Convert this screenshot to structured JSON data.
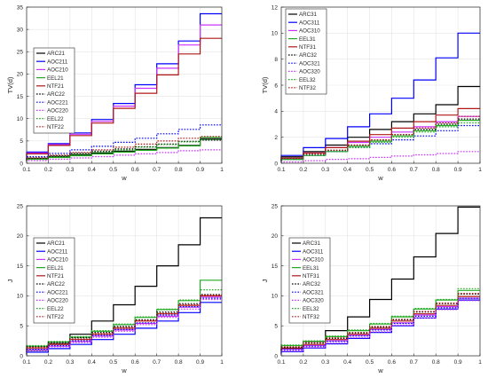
{
  "chart_data": [
    {
      "type": "line",
      "step": true,
      "xlabel": "w",
      "ylabel": "TV(d)",
      "xlim": [
        0.1,
        1
      ],
      "ylim": [
        0,
        35
      ],
      "xticks": [
        "0.1",
        "0.2",
        "0.3",
        "0.4",
        "0.5",
        "0.6",
        "0.7",
        "0.8",
        "0.9",
        "1"
      ],
      "yticks": [
        "0",
        "5",
        "10",
        "15",
        "20",
        "25",
        "30",
        "35"
      ],
      "grid": true,
      "legend": "center-left",
      "x": [
        0.1,
        0.2,
        0.3,
        0.4,
        0.5,
        0.6,
        0.7,
        0.8,
        0.9,
        1.0
      ],
      "series": [
        {
          "name": "ARC21",
          "color": "#000000",
          "style": "solid",
          "values": [
            0.6,
            1.1,
            1.5,
            1.9,
            2.3,
            2.7,
            3.1,
            3.5,
            4.0,
            5.5
          ]
        },
        {
          "name": "AOC211",
          "color": "#0000ff",
          "style": "solid",
          "values": [
            1.0,
            2.5,
            4.4,
            6.8,
            9.8,
            13.4,
            17.6,
            22.3,
            27.4,
            33.5
          ]
        },
        {
          "name": "AOC210",
          "color": "#cc33ff",
          "style": "solid",
          "values": [
            0.9,
            2.3,
            4.2,
            6.5,
            9.4,
            12.8,
            16.8,
            21.3,
            26.5,
            31.0
          ]
        },
        {
          "name": "EEL21",
          "color": "#22aa22",
          "style": "solid",
          "values": [
            0.5,
            0.9,
            1.3,
            1.7,
            2.1,
            2.5,
            2.9,
            3.4,
            3.9,
            5.8
          ]
        },
        {
          "name": "NTF21",
          "color": "#b01818",
          "style": "solid",
          "values": [
            0.9,
            2.1,
            4.0,
            6.2,
            9.0,
            12.3,
            15.7,
            19.8,
            24.5,
            28.0
          ]
        },
        {
          "name": "ARC22",
          "color": "#000000",
          "style": "dotted",
          "values": [
            0.7,
            1.2,
            1.7,
            2.2,
            2.7,
            3.2,
            3.7,
            4.3,
            4.9,
            5.2
          ]
        },
        {
          "name": "AOC221",
          "color": "#0000ff",
          "style": "dotted",
          "values": [
            0.9,
            1.5,
            2.2,
            3.0,
            3.8,
            4.7,
            5.6,
            6.6,
            7.6,
            8.6
          ]
        },
        {
          "name": "AOC220",
          "color": "#cc33ff",
          "style": "dotted",
          "values": [
            0.3,
            0.6,
            0.9,
            1.2,
            1.5,
            1.8,
            2.1,
            2.4,
            2.8,
            3.0
          ]
        },
        {
          "name": "EEL22",
          "color": "#22aa22",
          "style": "dotted",
          "values": [
            0.5,
            1.0,
            1.5,
            2.0,
            2.5,
            3.0,
            3.6,
            4.2,
            4.8,
            5.3
          ]
        },
        {
          "name": "NTF22",
          "color": "#b01818",
          "style": "dotted",
          "values": [
            0.6,
            1.2,
            1.8,
            2.4,
            3.0,
            3.6,
            4.3,
            5.0,
            5.6,
            6.0
          ]
        }
      ]
    },
    {
      "type": "line",
      "step": true,
      "xlabel": "w",
      "ylabel": "TV(d)",
      "xlim": [
        0.1,
        1
      ],
      "ylim": [
        0,
        12
      ],
      "xticks": [
        "0.1",
        "0.2",
        "0.3",
        "0.4",
        "0.5",
        "0.6",
        "0.7",
        "0.8",
        "0.9",
        "1"
      ],
      "yticks": [
        "0",
        "2",
        "4",
        "6",
        "8",
        "10",
        "12"
      ],
      "grid": true,
      "legend": "top-left",
      "x": [
        0.1,
        0.2,
        0.3,
        0.4,
        0.5,
        0.6,
        0.7,
        0.8,
        0.9,
        1.0
      ],
      "series": [
        {
          "name": "ARC31",
          "color": "#000000",
          "style": "solid",
          "values": [
            0.2,
            0.5,
            0.9,
            1.4,
            2.0,
            2.6,
            3.2,
            3.8,
            4.5,
            5.9
          ]
        },
        {
          "name": "AOC311",
          "color": "#0000ff",
          "style": "solid",
          "values": [
            0.3,
            0.6,
            1.2,
            1.9,
            2.8,
            3.8,
            5.0,
            6.4,
            8.1,
            10.0
          ]
        },
        {
          "name": "AOC310",
          "color": "#cc33ff",
          "style": "solid",
          "values": [
            0.2,
            0.4,
            0.8,
            1.2,
            1.6,
            2.0,
            2.4,
            2.8,
            3.2,
            3.6
          ]
        },
        {
          "name": "EEL31",
          "color": "#22aa22",
          "style": "solid",
          "values": [
            0.1,
            0.3,
            0.6,
            0.9,
            1.3,
            1.7,
            2.1,
            2.5,
            2.9,
            3.3
          ]
        },
        {
          "name": "NTF31",
          "color": "#b01818",
          "style": "solid",
          "values": [
            0.2,
            0.4,
            0.8,
            1.2,
            1.7,
            2.2,
            2.7,
            3.2,
            3.7,
            4.2
          ]
        },
        {
          "name": "ARC32",
          "color": "#000000",
          "style": "dotted",
          "values": [
            0.2,
            0.4,
            0.7,
            1.0,
            1.4,
            1.8,
            2.2,
            2.6,
            3.0,
            3.4
          ]
        },
        {
          "name": "AOC321",
          "color": "#0000ff",
          "style": "dotted",
          "values": [
            0.1,
            0.3,
            0.6,
            0.9,
            1.2,
            1.5,
            1.8,
            2.1,
            2.5,
            2.9
          ]
        },
        {
          "name": "AOC320",
          "color": "#cc33ff",
          "style": "dotted",
          "values": [
            0.05,
            0.1,
            0.2,
            0.3,
            0.35,
            0.45,
            0.55,
            0.65,
            0.75,
            0.9
          ]
        },
        {
          "name": "EEL32",
          "color": "#22aa22",
          "style": "dotted",
          "values": [
            0.1,
            0.3,
            0.6,
            0.9,
            1.2,
            1.6,
            2.0,
            2.4,
            2.8,
            3.1
          ]
        },
        {
          "name": "NTF32",
          "color": "#b01818",
          "style": "dotted",
          "values": [
            0.2,
            0.4,
            0.7,
            1.0,
            1.4,
            1.8,
            2.2,
            2.7,
            3.1,
            3.6
          ]
        }
      ]
    },
    {
      "type": "line",
      "step": true,
      "xlabel": "w",
      "ylabel": "J",
      "xlim": [
        0.1,
        1
      ],
      "ylim": [
        0,
        25
      ],
      "xticks": [
        "0.1",
        "0.2",
        "0.3",
        "0.4",
        "0.5",
        "0.6",
        "0.7",
        "0.8",
        "0.9",
        "1"
      ],
      "yticks": [
        "0",
        "5",
        "10",
        "15",
        "20",
        "25"
      ],
      "grid": true,
      "legend": "center-left",
      "x": [
        0.1,
        0.2,
        0.3,
        0.4,
        0.5,
        0.6,
        0.7,
        0.8,
        0.9,
        1.0
      ],
      "series": [
        {
          "name": "ARC21",
          "color": "#000000",
          "style": "solid",
          "values": [
            0.2,
            0.9,
            2.0,
            3.6,
            5.8,
            8.5,
            11.6,
            15.0,
            18.5,
            23.0
          ]
        },
        {
          "name": "AOC211",
          "color": "#0000ff",
          "style": "solid",
          "values": [
            0.2,
            0.6,
            1.2,
            1.9,
            2.7,
            3.6,
            4.6,
            5.8,
            7.2,
            8.9
          ]
        },
        {
          "name": "AOC210",
          "color": "#cc33ff",
          "style": "solid",
          "values": [
            0.5,
            1.0,
            1.6,
            2.4,
            3.3,
            4.3,
            5.4,
            6.6,
            8.1,
            9.8
          ]
        },
        {
          "name": "EEL21",
          "color": "#22aa22",
          "style": "solid",
          "values": [
            1.1,
            1.6,
            2.3,
            3.1,
            4.1,
            5.2,
            6.4,
            7.7,
            9.2,
            12.6
          ]
        },
        {
          "name": "NTF21",
          "color": "#b01818",
          "style": "solid",
          "values": [
            0.8,
            1.3,
            1.9,
            2.7,
            3.6,
            4.6,
            5.8,
            7.0,
            8.4,
            10.0
          ]
        },
        {
          "name": "ARC22",
          "color": "#000000",
          "style": "dotted",
          "values": [
            1.0,
            1.5,
            2.2,
            3.0,
            3.9,
            4.9,
            6.0,
            7.3,
            8.7,
            10.2
          ]
        },
        {
          "name": "AOC221",
          "color": "#0000ff",
          "style": "dotted",
          "values": [
            0.6,
            1.1,
            1.7,
            2.5,
            3.4,
            4.4,
            5.5,
            6.8,
            8.2,
            9.6
          ]
        },
        {
          "name": "AOC220",
          "color": "#cc33ff",
          "style": "dotted",
          "values": [
            0.4,
            0.9,
            1.5,
            2.2,
            3.1,
            4.1,
            5.2,
            6.4,
            7.8,
            9.4
          ]
        },
        {
          "name": "EEL22",
          "color": "#22aa22",
          "style": "dotted",
          "values": [
            1.2,
            1.7,
            2.4,
            3.2,
            4.2,
            5.3,
            6.5,
            7.8,
            9.3,
            11.0
          ]
        },
        {
          "name": "NTF22",
          "color": "#b01818",
          "style": "dotted",
          "values": [
            0.9,
            1.4,
            2.0,
            2.8,
            3.7,
            4.7,
            5.9,
            7.1,
            8.5,
            10.1
          ]
        }
      ]
    },
    {
      "type": "line",
      "step": true,
      "xlabel": "w",
      "ylabel": "J",
      "xlim": [
        0.1,
        1
      ],
      "ylim": [
        0,
        25
      ],
      "xticks": [
        "0.1",
        "0.2",
        "0.3",
        "0.4",
        "0.5",
        "0.6",
        "0.7",
        "0.8",
        "0.9",
        "1"
      ],
      "yticks": [
        "0",
        "5",
        "10",
        "15",
        "20",
        "25"
      ],
      "grid": true,
      "legend": "center-left",
      "x": [
        0.1,
        0.2,
        0.3,
        0.4,
        0.5,
        0.6,
        0.7,
        0.8,
        0.9,
        1.0
      ],
      "series": [
        {
          "name": "ARC31",
          "color": "#000000",
          "style": "solid",
          "values": [
            0.4,
            1.2,
            2.4,
            4.2,
            6.5,
            9.4,
            12.8,
            16.5,
            20.4,
            24.8
          ]
        },
        {
          "name": "AOC311",
          "color": "#0000ff",
          "style": "solid",
          "values": [
            0.2,
            0.7,
            1.3,
            2.0,
            2.9,
            3.9,
            5.0,
            6.3,
            7.8,
            9.3
          ]
        },
        {
          "name": "AOC310",
          "color": "#cc33ff",
          "style": "solid",
          "values": [
            0.6,
            1.1,
            1.7,
            2.5,
            3.4,
            4.4,
            5.5,
            6.8,
            8.2,
            9.6
          ]
        },
        {
          "name": "EEL31",
          "color": "#22aa22",
          "style": "solid",
          "values": [
            1.2,
            1.7,
            2.4,
            3.2,
            4.2,
            5.3,
            6.5,
            7.8,
            9.3,
            10.9
          ]
        },
        {
          "name": "NTF31",
          "color": "#b01818",
          "style": "solid",
          "values": [
            0.8,
            1.3,
            1.9,
            2.7,
            3.6,
            4.6,
            5.8,
            7.0,
            8.4,
            9.9
          ]
        },
        {
          "name": "ARC32",
          "color": "#000000",
          "style": "dotted",
          "values": [
            0.9,
            1.4,
            2.1,
            2.9,
            3.8,
            4.8,
            6.0,
            7.3,
            8.7,
            10.3
          ]
        },
        {
          "name": "AOC321",
          "color": "#0000ff",
          "style": "dotted",
          "values": [
            0.5,
            1.0,
            1.6,
            2.4,
            3.3,
            4.3,
            5.4,
            6.6,
            8.0,
            9.6
          ]
        },
        {
          "name": "AOC320",
          "color": "#cc33ff",
          "style": "dotted",
          "values": [
            0.3,
            0.8,
            1.4,
            2.1,
            3.0,
            4.0,
            5.1,
            6.3,
            7.7,
            9.2
          ]
        },
        {
          "name": "EEL32",
          "color": "#22aa22",
          "style": "dotted",
          "values": [
            1.3,
            1.8,
            2.5,
            3.3,
            4.3,
            5.4,
            6.6,
            7.9,
            9.4,
            11.2
          ]
        },
        {
          "name": "NTF32",
          "color": "#b01818",
          "style": "dotted",
          "values": [
            1.0,
            1.5,
            2.2,
            3.0,
            3.9,
            4.9,
            6.1,
            7.4,
            8.8,
            10.4
          ]
        }
      ]
    }
  ]
}
